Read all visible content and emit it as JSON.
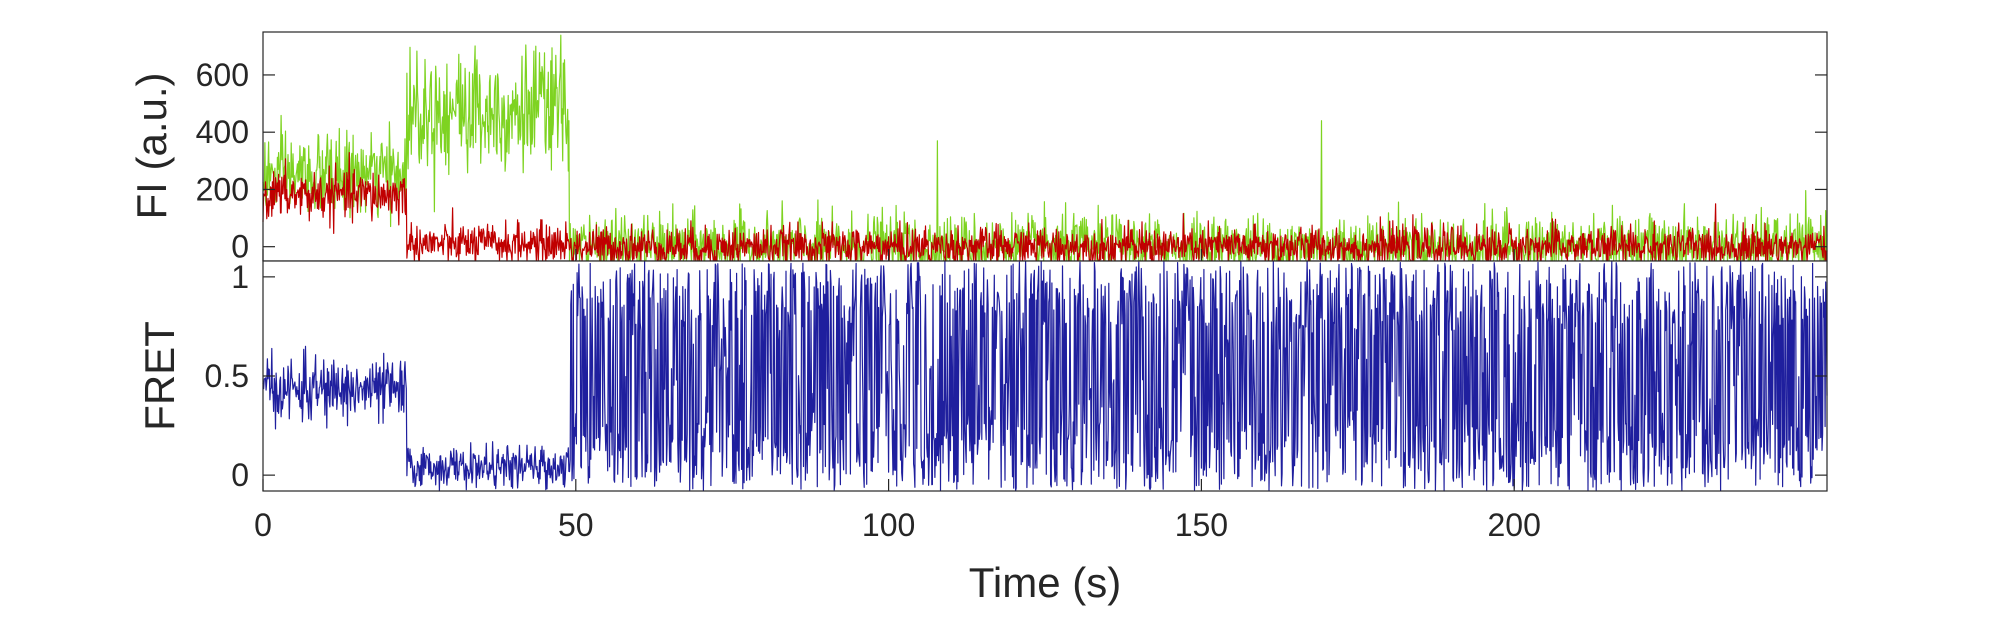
{
  "chart_data": [
    {
      "type": "line",
      "ylabel": "FI (a.u.)",
      "xlabel": "",
      "xlim": [
        0,
        250
      ],
      "ylim": [
        -50,
        750
      ],
      "yticks": [
        0,
        200,
        400,
        600
      ],
      "ytick_labels": [
        "0",
        "200",
        "400",
        "600"
      ],
      "show_xtick_labels": false,
      "grid": false,
      "series": [
        {
          "color": "#7ed321",
          "note_segments": [
            {
              "x_start": 0,
              "x_end": 23,
              "mean": 250,
              "noise": 70
            },
            {
              "x_start": 23,
              "x_end": 49,
              "mean": 480,
              "noise": 110
            },
            {
              "x_start": 49,
              "x_end": 250,
              "mean": 0,
              "noise": 55
            }
          ],
          "spikes": [
            {
              "x": 107.8,
              "y": 370
            },
            {
              "x": 169.2,
              "y": 440
            }
          ]
        },
        {
          "color": "#c00000",
          "note_segments": [
            {
              "x_start": 0,
              "x_end": 23,
              "mean": 180,
              "noise": 45
            },
            {
              "x_start": 23,
              "x_end": 49,
              "mean": 10,
              "noise": 35
            },
            {
              "x_start": 49,
              "x_end": 250,
              "mean": 0,
              "noise": 35
            }
          ],
          "spikes": []
        }
      ]
    },
    {
      "type": "line",
      "ylabel": "FRET",
      "xlabel": "Time (s)",
      "xlim": [
        0,
        250
      ],
      "ylim": [
        -0.08,
        1.08
      ],
      "yticks": [
        0,
        0.5,
        1
      ],
      "ytick_labels": [
        "0",
        "0.5",
        "1"
      ],
      "xticks": [
        0,
        50,
        100,
        150,
        200
      ],
      "xtick_labels": [
        "0",
        "50",
        "100",
        "150",
        "200"
      ],
      "grid": false,
      "series": [
        {
          "color": "#1f1f9e",
          "note_segments": [
            {
              "x_start": 0,
              "x_end": 23,
              "mean": 0.43,
              "noise": 0.08
            },
            {
              "x_start": 23,
              "x_end": 49,
              "mean": 0.04,
              "noise": 0.05
            },
            {
              "x_start": 49,
              "x_end": 250,
              "mean": 0.5,
              "noise": 0.55
            }
          ],
          "clip": [
            -0.08,
            1.08
          ]
        }
      ]
    }
  ]
}
